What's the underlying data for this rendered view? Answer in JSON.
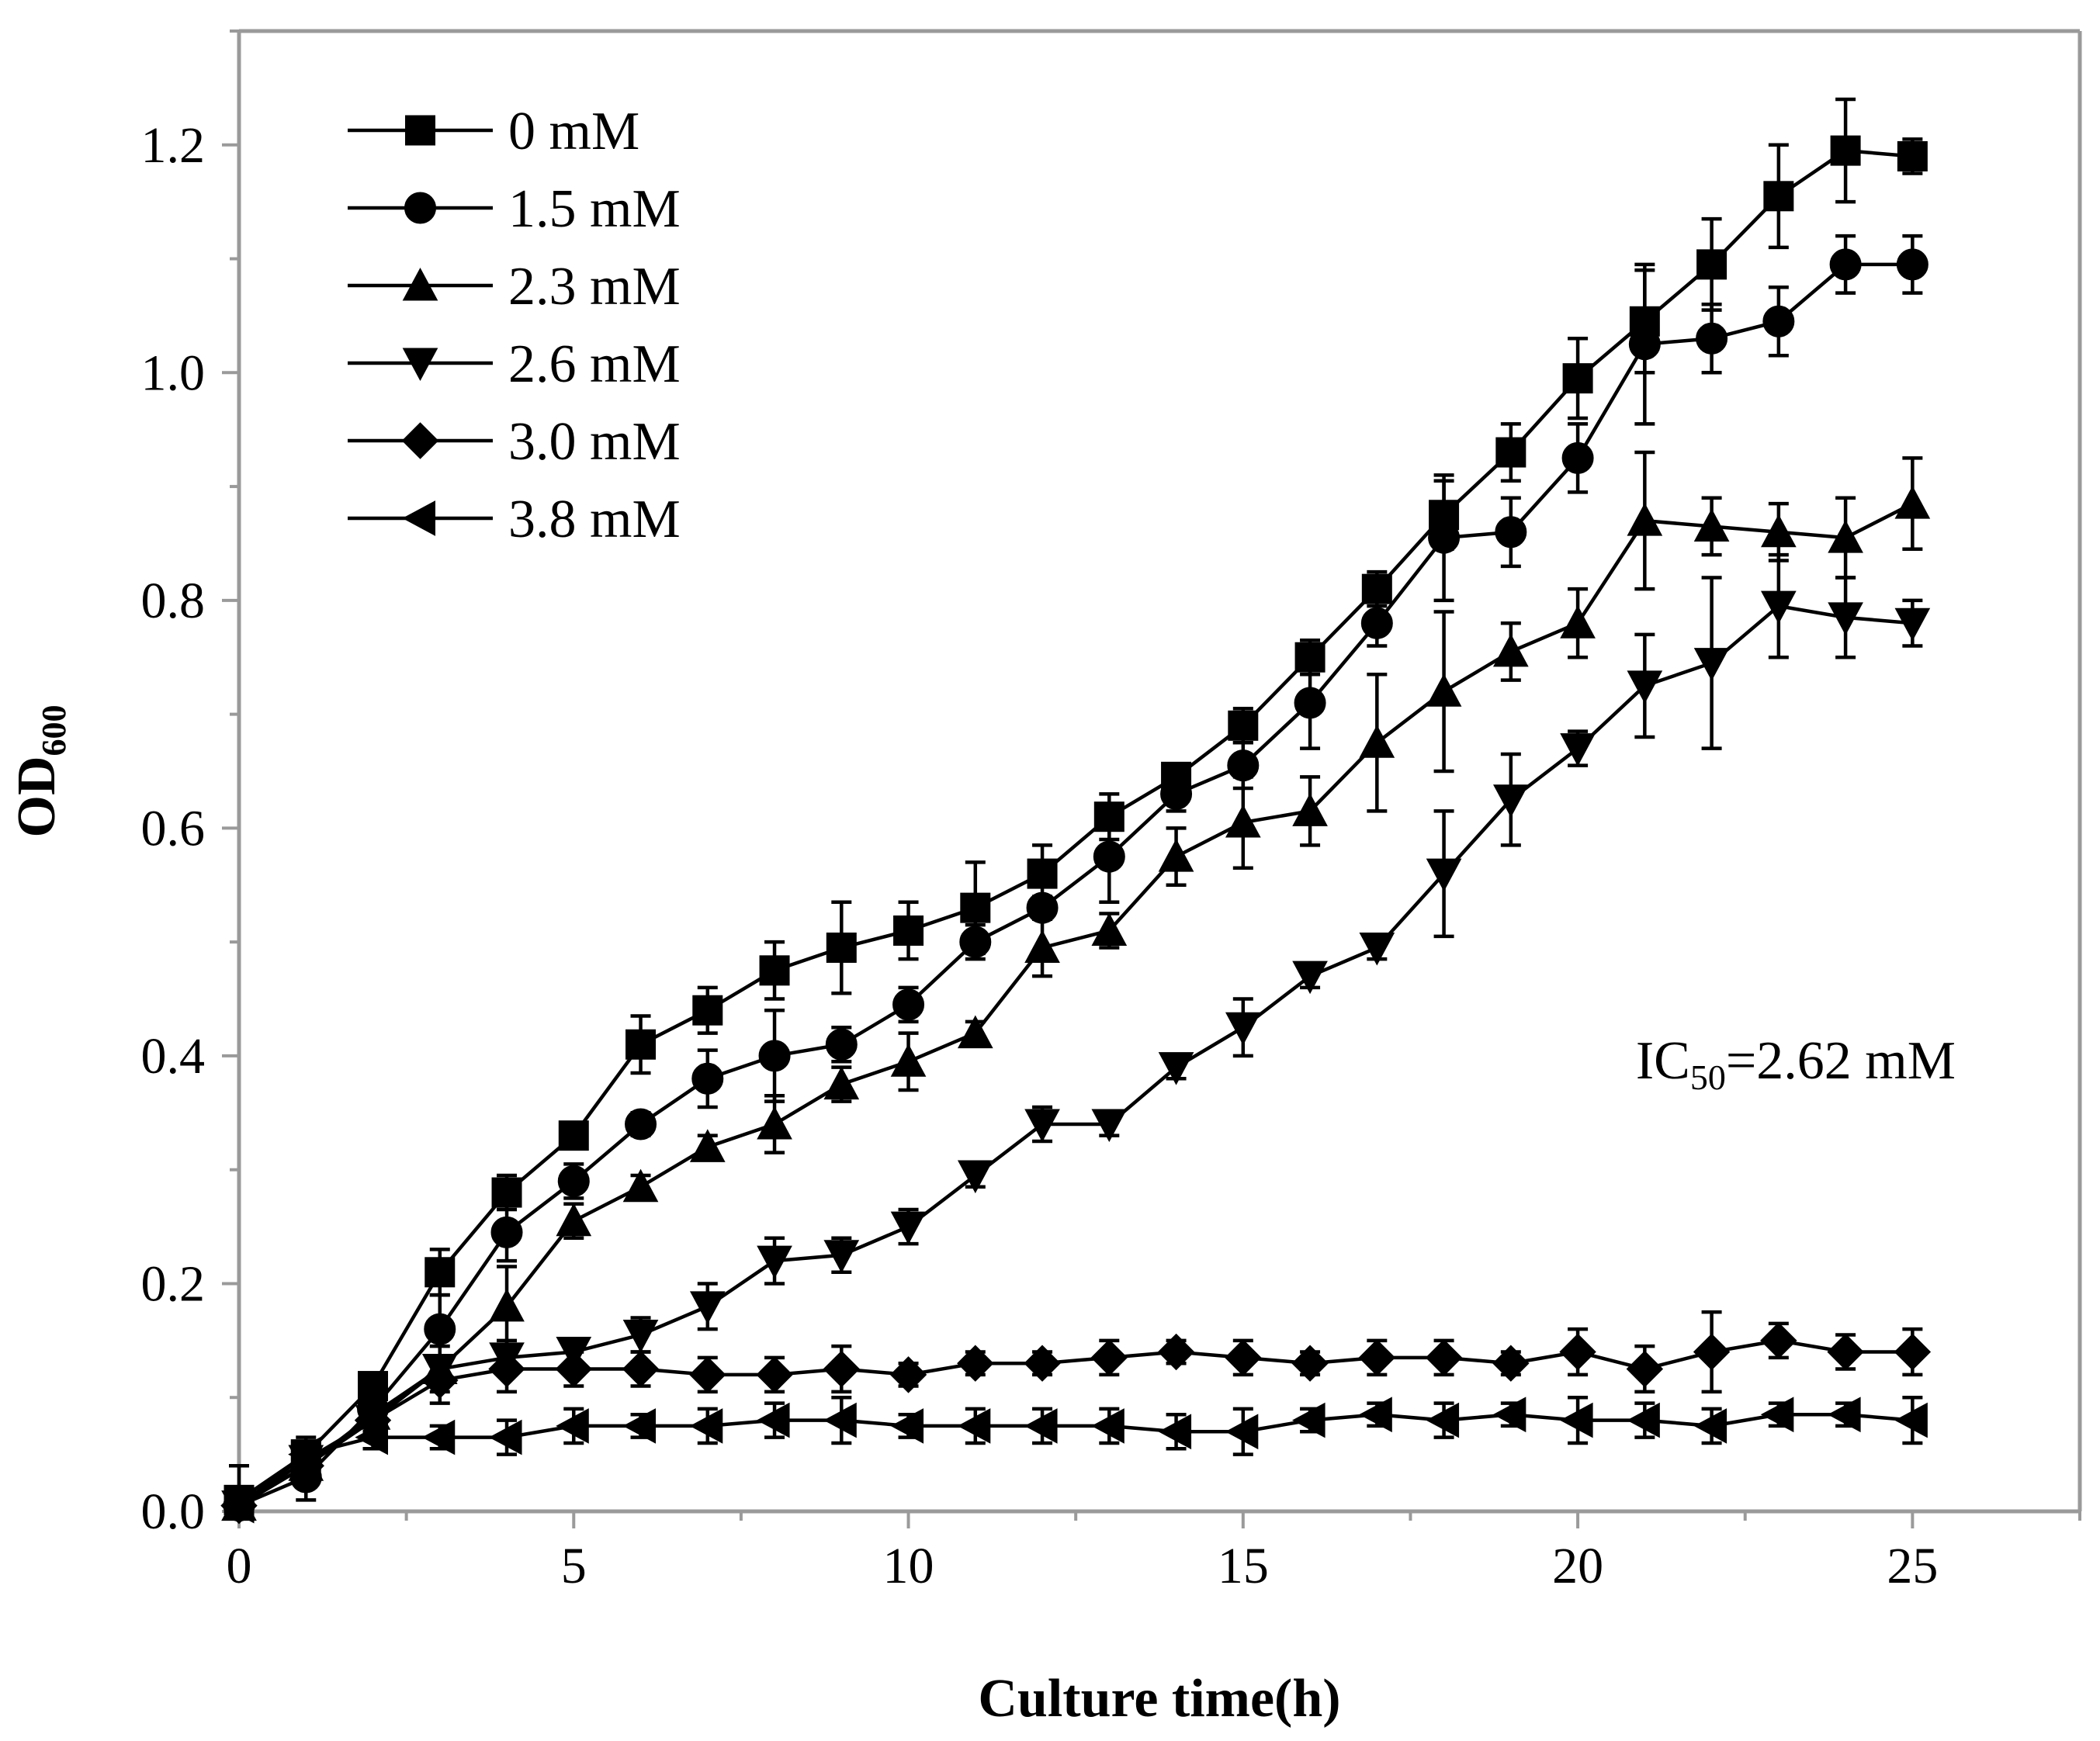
{
  "chart_data": {
    "type": "line",
    "title": "",
    "xlabel": "Culture time(h)",
    "ylabel": "OD",
    "ylabel_subscript": "600",
    "xlim": [
      0,
      27.5
    ],
    "ylim": [
      0,
      1.3
    ],
    "xticks": [
      0,
      5,
      10,
      15,
      20,
      25
    ],
    "xtick_labels": [
      "0",
      "5",
      "10",
      "15",
      "20",
      "25"
    ],
    "yticks": [
      0,
      0.2,
      0.4,
      0.6,
      0.8,
      1.0,
      1.2
    ],
    "ytick_labels": [
      "0.0",
      "0.2",
      "0.4",
      "0.6",
      "0.8",
      "1.0",
      "1.2"
    ],
    "grid": false,
    "legend_position": "top-left",
    "annotation": {
      "main": "IC",
      "subscript": "50",
      "rest": "=2.62 mM"
    },
    "x": [
      0,
      1,
      2,
      3,
      4,
      5,
      6,
      7,
      8,
      9,
      10,
      11,
      12,
      13,
      14,
      15,
      16,
      17,
      18,
      19,
      20,
      21,
      22,
      23,
      24,
      25
    ],
    "series": [
      {
        "name": "0 mM",
        "marker": "square",
        "values": [
          0.01,
          0.05,
          0.11,
          0.21,
          0.28,
          0.33,
          0.41,
          0.44,
          0.475,
          0.495,
          0.51,
          0.53,
          0.56,
          0.61,
          0.645,
          0.69,
          0.75,
          0.81,
          0.875,
          0.93,
          0.995,
          1.045,
          1.095,
          1.155,
          1.195,
          1.19
        ],
        "errors": [
          0.03,
          0.015,
          0.01,
          0.02,
          0.015,
          0.01,
          0.025,
          0.02,
          0.025,
          0.04,
          0.025,
          0.04,
          0.025,
          0.02,
          0.01,
          0.015,
          0.015,
          0.015,
          0.03,
          0.025,
          0.035,
          0.045,
          0.04,
          0.045,
          0.045,
          0.015
        ]
      },
      {
        "name": "1.5 mM",
        "marker": "circle",
        "values": [
          0.005,
          0.03,
          0.09,
          0.16,
          0.245,
          0.29,
          0.34,
          0.38,
          0.4,
          0.41,
          0.445,
          0.5,
          0.53,
          0.575,
          0.63,
          0.655,
          0.71,
          0.78,
          0.855,
          0.86,
          0.925,
          1.025,
          1.03,
          1.045,
          1.095,
          1.095
        ],
        "errors": [
          0.01,
          0.02,
          0.01,
          0.03,
          0.025,
          0.015,
          0.01,
          0.025,
          0.04,
          0.015,
          0.015,
          0.015,
          0.01,
          0.04,
          0.015,
          0.02,
          0.04,
          0.02,
          0.055,
          0.03,
          0.03,
          0.07,
          0.03,
          0.03,
          0.025,
          0.025
        ]
      },
      {
        "name": "2.3 mM",
        "marker": "triangle-up",
        "values": [
          0.005,
          0.04,
          0.085,
          0.125,
          0.18,
          0.255,
          0.285,
          0.32,
          0.34,
          0.375,
          0.395,
          0.42,
          0.495,
          0.51,
          0.575,
          0.605,
          0.615,
          0.675,
          0.72,
          0.755,
          0.78,
          0.87,
          0.865,
          0.86,
          0.855,
          0.885
        ],
        "errors": [
          0.01,
          0.01,
          0.01,
          0.02,
          0.035,
          0.015,
          0.01,
          0.01,
          0.025,
          0.015,
          0.025,
          0.01,
          0.025,
          0.015,
          0.025,
          0.04,
          0.03,
          0.06,
          0.07,
          0.025,
          0.03,
          0.06,
          0.025,
          0.025,
          0.035,
          0.04
        ]
      },
      {
        "name": "2.6 mM",
        "marker": "triangle-down",
        "values": [
          0.005,
          0.045,
          0.08,
          0.125,
          0.135,
          0.14,
          0.155,
          0.18,
          0.22,
          0.225,
          0.25,
          0.295,
          0.34,
          0.34,
          0.39,
          0.425,
          0.47,
          0.495,
          0.56,
          0.625,
          0.67,
          0.725,
          0.745,
          0.795,
          0.785,
          0.78
        ],
        "errors": [
          0.01,
          0.01,
          0.01,
          0.01,
          0.015,
          0.01,
          0.015,
          0.02,
          0.02,
          0.015,
          0.015,
          0.01,
          0.015,
          0.01,
          0.01,
          0.025,
          0.01,
          0.01,
          0.055,
          0.04,
          0.015,
          0.045,
          0.075,
          0.045,
          0.035,
          0.02
        ]
      },
      {
        "name": "3.0 mM",
        "marker": "diamond",
        "values": [
          0.005,
          0.04,
          0.08,
          0.115,
          0.125,
          0.125,
          0.125,
          0.12,
          0.12,
          0.125,
          0.12,
          0.13,
          0.13,
          0.135,
          0.14,
          0.135,
          0.13,
          0.135,
          0.135,
          0.13,
          0.14,
          0.125,
          0.14,
          0.15,
          0.14,
          0.14
        ],
        "errors": [
          0.01,
          0.01,
          0.01,
          0.02,
          0.02,
          0.015,
          0.015,
          0.015,
          0.015,
          0.02,
          0.01,
          0.01,
          0.01,
          0.015,
          0.01,
          0.015,
          0.01,
          0.015,
          0.015,
          0.01,
          0.02,
          0.02,
          0.035,
          0.015,
          0.015,
          0.02
        ]
      },
      {
        "name": "3.8 mM",
        "marker": "triangle-left",
        "values": [
          0.005,
          0.05,
          0.065,
          0.065,
          0.065,
          0.075,
          0.075,
          0.075,
          0.08,
          0.08,
          0.075,
          0.075,
          0.075,
          0.075,
          0.07,
          0.07,
          0.08,
          0.085,
          0.08,
          0.085,
          0.08,
          0.08,
          0.075,
          0.085,
          0.085,
          0.08
        ],
        "errors": [
          0.01,
          0.01,
          0.01,
          0.01,
          0.015,
          0.015,
          0.01,
          0.015,
          0.015,
          0.02,
          0.01,
          0.015,
          0.015,
          0.015,
          0.015,
          0.02,
          0.01,
          0.01,
          0.015,
          0.01,
          0.02,
          0.015,
          0.015,
          0.01,
          0.01,
          0.02
        ]
      }
    ]
  }
}
